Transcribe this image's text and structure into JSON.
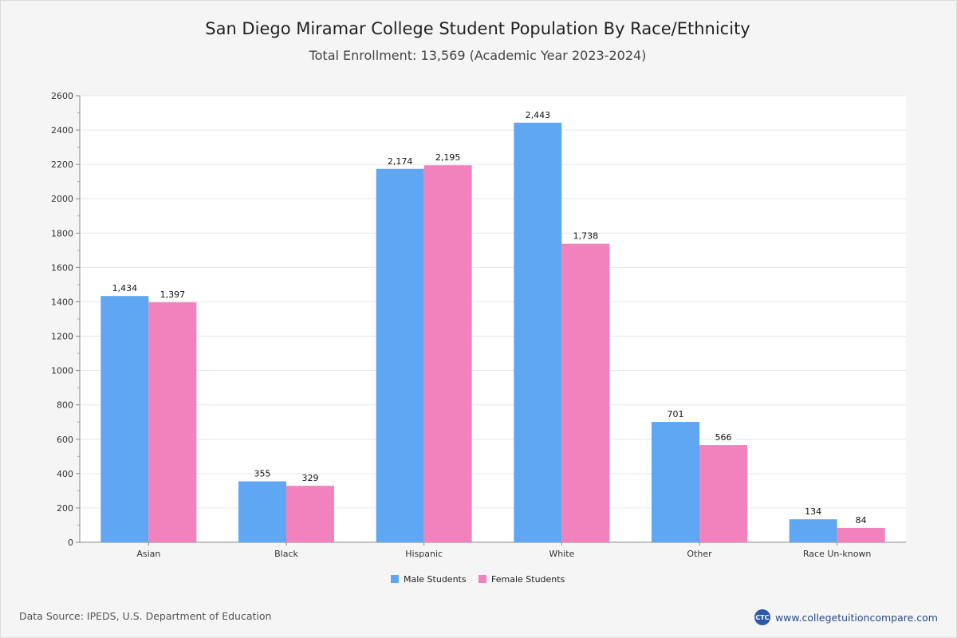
{
  "chart_data": {
    "type": "bar",
    "title": "San Diego Miramar College Student Population By Race/Ethnicity",
    "subtitle": "Total Enrollment: 13,569 (Academic Year 2023-2024)",
    "categories": [
      "Asian",
      "Black",
      "Hispanic",
      "White",
      "Other",
      "Race Un-known"
    ],
    "series": [
      {
        "name": "Male Students",
        "color": "#60a7f3",
        "values": [
          1434,
          355,
          2174,
          2443,
          701,
          134
        ],
        "labels": [
          "1,434",
          "355",
          "2,174",
          "2,443",
          "701",
          "134"
        ]
      },
      {
        "name": "Female Students",
        "color": "#f282bd",
        "values": [
          1397,
          329,
          2195,
          1738,
          566,
          84
        ],
        "labels": [
          "1,397",
          "329",
          "2,195",
          "1,738",
          "566",
          "84"
        ]
      }
    ],
    "ylim": [
      0,
      2600
    ],
    "yticks": [
      0,
      200,
      400,
      600,
      800,
      1000,
      1200,
      1400,
      1600,
      1800,
      2000,
      2200,
      2400,
      2600
    ],
    "grid": true,
    "legend_position": "bottom-center"
  },
  "footer": {
    "source": "Data Source: IPEDS, U.S. Department of Education",
    "brand_logo_text": "CTC",
    "brand_url": "www.collegetuitioncompare.com"
  }
}
